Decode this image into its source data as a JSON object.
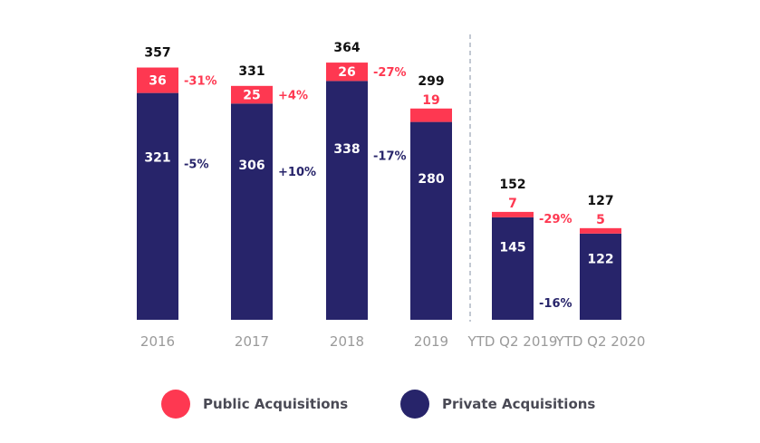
{
  "chart_data": {
    "type": "bar",
    "stacked": true,
    "title": "",
    "xlabel": "",
    "ylabel": "",
    "categories": [
      "2016",
      "2017",
      "2018",
      "2019",
      "YTD Q2 2019",
      "YTD Q2 2020"
    ],
    "series": [
      {
        "name": "Private Acquisitions",
        "color": "#27246a",
        "values": [
          321,
          306,
          338,
          280,
          145,
          122
        ]
      },
      {
        "name": "Public Acquisitions",
        "color": "#fe3851",
        "values": [
          36,
          25,
          26,
          19,
          7,
          5
        ]
      }
    ],
    "totals": [
      "357",
      "331",
      "364",
      "299",
      "152",
      "127"
    ],
    "value_labels": {
      "private": [
        "321",
        "306",
        "338",
        "280",
        "145",
        "122"
      ],
      "public": [
        "36",
        "25",
        "26",
        "19",
        "7",
        "5"
      ]
    },
    "change_annotations": {
      "public": [
        "-31%",
        "+4%",
        "-27%",
        null,
        "-29%",
        null
      ],
      "private": [
        "-5%",
        "+10%",
        "-17%",
        null,
        "-16%",
        null
      ]
    },
    "separator_after_category": "2019",
    "axes_visible": false,
    "grid": false,
    "legend_position": "bottom",
    "legend": [
      {
        "label": "Public Acquisitions",
        "color": "#fe3851"
      },
      {
        "label": "Private Acquisitions",
        "color": "#27246a"
      }
    ]
  },
  "colors": {
    "public": "#fe3851",
    "private": "#27246a",
    "total_label": "#111111",
    "category_label": "#9a9a9a",
    "separator": "#9aa3b5"
  }
}
